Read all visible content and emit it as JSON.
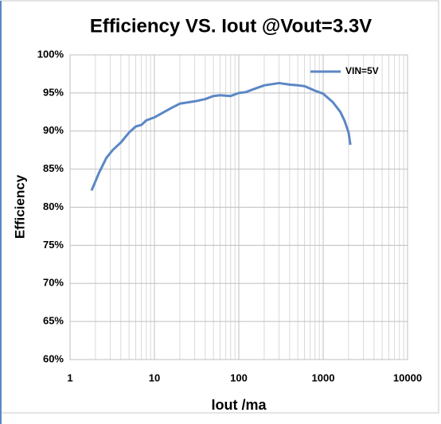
{
  "chart_data": {
    "type": "line",
    "title": "Efficiency VS. Iout @Vout=3.3V",
    "xlabel": "Iout /ma",
    "ylabel": "Efficiency",
    "xscale": "log",
    "xlim": [
      1,
      10000
    ],
    "xticks": [
      1,
      10,
      100,
      1000,
      10000
    ],
    "ylim": [
      60,
      100
    ],
    "yticks": [
      {
        "value": 60,
        "label": "60%"
      },
      {
        "value": 65,
        "label": "65%"
      },
      {
        "value": 70,
        "label": "70%"
      },
      {
        "value": 75,
        "label": "75%"
      },
      {
        "value": 80,
        "label": "80%"
      },
      {
        "value": 85,
        "label": "85%"
      },
      {
        "value": 90,
        "label": "90%"
      },
      {
        "value": 95,
        "label": "95%"
      },
      {
        "value": 100,
        "label": "100%"
      }
    ],
    "grid": true,
    "minor_grid": true,
    "legend": "upper right",
    "x": [
      1.8,
      2.2,
      2.7,
      3.2,
      4,
      5,
      6,
      7,
      8,
      10,
      13,
      17,
      20,
      30,
      40,
      50,
      60,
      80,
      100,
      120,
      150,
      200,
      300,
      400,
      500,
      600,
      800,
      1000,
      1300,
      1600,
      1800,
      2000,
      2100
    ],
    "series": [
      {
        "name": "VIN=5V",
        "color": "#5b87c5",
        "values": [
          82.2,
          84.5,
          86.5,
          87.5,
          88.5,
          89.8,
          90.6,
          90.8,
          91.4,
          91.8,
          92.5,
          93.2,
          93.6,
          93.9,
          94.2,
          94.6,
          94.7,
          94.6,
          95,
          95.1,
          95.5,
          96,
          96.3,
          96.1,
          96,
          95.9,
          95.3,
          94.9,
          93.8,
          92.5,
          91.3,
          89.8,
          88.2
        ]
      }
    ]
  }
}
